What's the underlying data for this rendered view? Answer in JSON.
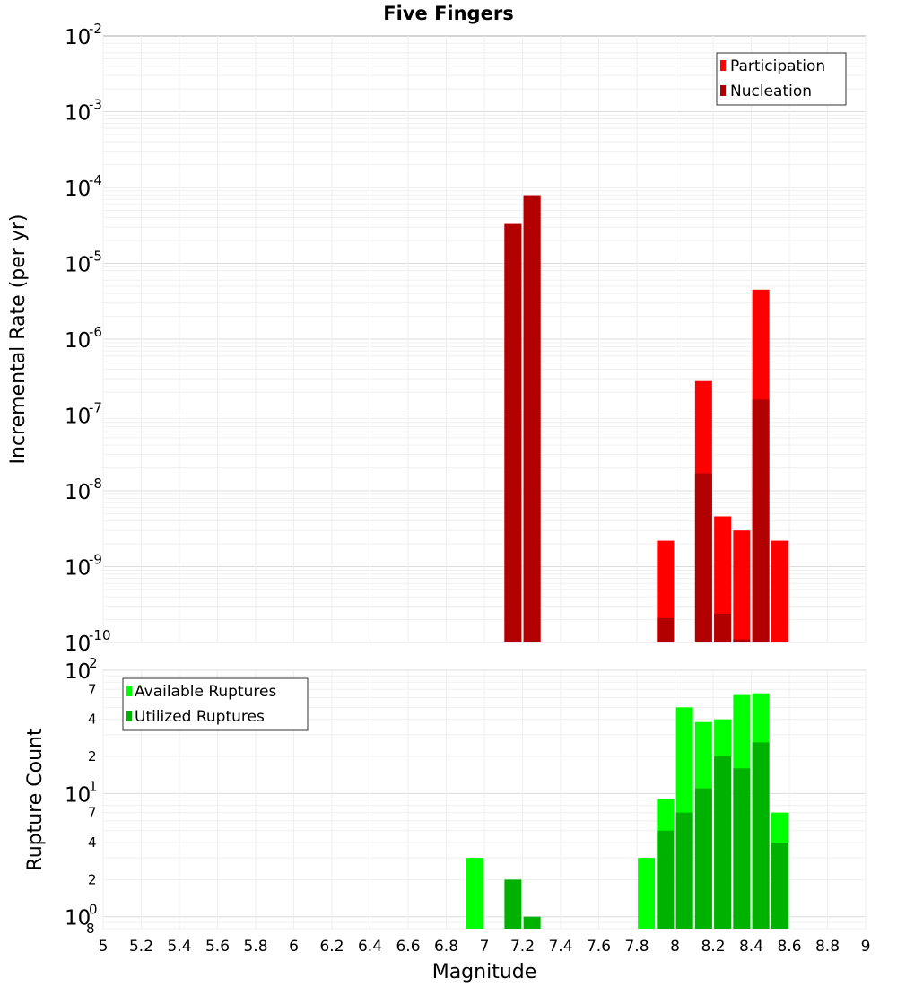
{
  "chart_data": [
    {
      "type": "bar",
      "title": "Five Fingers",
      "xlabel": "",
      "ylabel": "Incremental Rate (per yr)",
      "yscale": "log",
      "ylim": [
        1e-10,
        0.01
      ],
      "xlim": [
        5,
        9
      ],
      "grid": true,
      "legend_position": "top-right",
      "y_tick_labels": [
        {
          "base": "10",
          "exp": "-10"
        },
        {
          "base": "10",
          "exp": "-9"
        },
        {
          "base": "10",
          "exp": "-8"
        },
        {
          "base": "10",
          "exp": "-7"
        },
        {
          "base": "10",
          "exp": "-6"
        },
        {
          "base": "10",
          "exp": "-5"
        },
        {
          "base": "10",
          "exp": "-4"
        },
        {
          "base": "10",
          "exp": "-3"
        },
        {
          "base": "10",
          "exp": "-2"
        }
      ],
      "series": [
        {
          "name": "Participation",
          "color": "#ff0000",
          "x": [
            7.15,
            7.25,
            7.95,
            8.15,
            8.25,
            8.35,
            8.45,
            8.55
          ],
          "values": [
            3.3e-05,
            7.9e-05,
            2.2e-09,
            2.8e-07,
            4.6e-09,
            3e-09,
            4.5e-06,
            2.2e-09
          ]
        },
        {
          "name": "Nucleation",
          "color": "#b20000",
          "x": [
            7.15,
            7.25,
            7.95,
            8.15,
            8.25,
            8.35,
            8.45
          ],
          "values": [
            3.3e-05,
            7.9e-05,
            2.1e-10,
            1.7e-08,
            2.4e-10,
            1.1e-10,
            1.6e-07
          ]
        }
      ]
    },
    {
      "type": "bar",
      "title": "",
      "xlabel": "Magnitude",
      "ylabel": "Rupture Count",
      "yscale": "log",
      "ylim": [
        0.8,
        100
      ],
      "xlim": [
        5,
        9
      ],
      "grid": true,
      "legend_position": "top-left",
      "x_ticks": [
        "5",
        "5.2",
        "5.4",
        "5.6",
        "5.8",
        "6",
        "6.2",
        "6.4",
        "6.6",
        "6.8",
        "7",
        "7.2",
        "7.4",
        "7.6",
        "7.8",
        "8",
        "8.2",
        "8.4",
        "8.6",
        "8.8",
        "9"
      ],
      "y_tick_labels": {
        "major": [
          {
            "base": "10",
            "exp": "0"
          },
          {
            "base": "10",
            "exp": "1"
          },
          {
            "base": "10",
            "exp": "2"
          }
        ],
        "minor": [
          {
            "label": "8",
            "value": 0.8
          },
          {
            "label": "2",
            "value": 2
          },
          {
            "label": "4",
            "value": 4
          },
          {
            "label": "7",
            "value": 7
          },
          {
            "label": "2",
            "value": 20
          },
          {
            "label": "4",
            "value": 40
          },
          {
            "label": "7",
            "value": 70
          }
        ]
      },
      "series": [
        {
          "name": "Available Ruptures",
          "color": "#00ff00",
          "x": [
            6.95,
            7.85,
            7.95,
            8.05,
            8.15,
            8.25,
            8.35,
            8.45,
            8.55
          ],
          "values": [
            3,
            3,
            9,
            50,
            38,
            40,
            63,
            65,
            7
          ]
        },
        {
          "name": "Utilized Ruptures",
          "color": "#00b200",
          "x": [
            7.15,
            7.25,
            7.95,
            8.05,
            8.15,
            8.25,
            8.35,
            8.45,
            8.55
          ],
          "values": [
            2,
            1,
            5,
            7,
            11,
            20,
            16,
            26,
            4
          ]
        }
      ]
    }
  ]
}
